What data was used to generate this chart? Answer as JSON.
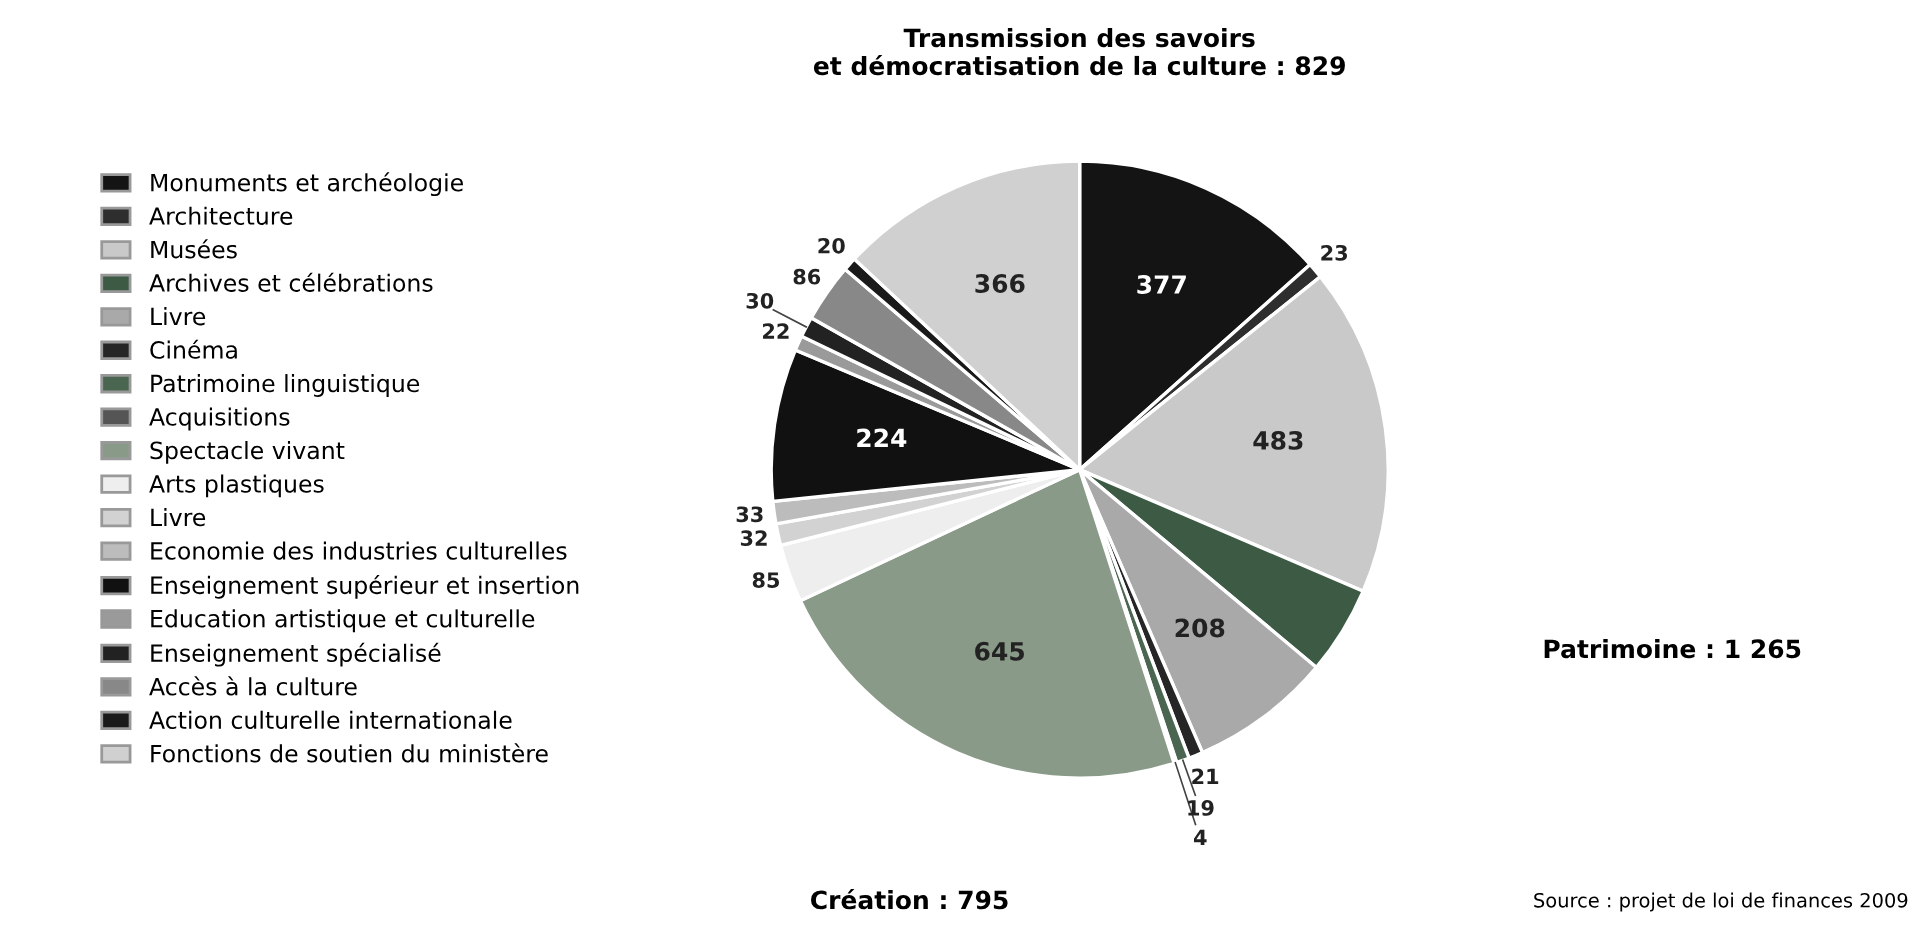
{
  "chart_data": {
    "type": "pie",
    "categories": [
      "Monuments et archéologie",
      "Architecture",
      "Musées",
      "Archives et célébrations",
      "Livre",
      "Cinéma",
      "Patrimoine linguistique",
      "Acquisitions",
      "Spectacle vivant",
      "Arts plastiques",
      "Livre",
      "Economie des industries culturelles",
      "Enseignement supérieur et insertion",
      "Education artistique et culturelle",
      "Enseignement spécialisé",
      "Accès à la culture",
      "Action culturelle internationale",
      "Fonctions de soutien du ministère"
    ],
    "values": [
      377,
      23,
      483,
      130,
      208,
      21,
      19,
      4,
      645,
      85,
      32,
      33,
      224,
      22,
      30,
      86,
      20,
      366
    ],
    "value_labels": [
      "377",
      "23",
      "483",
      null,
      "208",
      "21",
      "19",
      "4",
      "645",
      "85",
      "32",
      "33",
      "224",
      "22",
      "30",
      "86",
      "20",
      "366"
    ],
    "colors": [
      "#141414",
      "#2e2e2e",
      "#c9c9c9",
      "#3d5a45",
      "#a9a9a9",
      "#262626",
      "#4a6650",
      "#555555",
      "#8a9a88",
      "#eeeeee",
      "#d2d2d2",
      "#bcbcbc",
      "#111111",
      "#9a9a9a",
      "#222222",
      "#888888",
      "#1a1a1a",
      "#d0d0d0"
    ],
    "legend": "left",
    "annotations": [
      "Transmission des savoirs\net démocratisation de la culture : 829",
      "Patrimoine : 1 265",
      "Création : 795",
      "Source : projet de loi de finances 2009"
    ]
  }
}
